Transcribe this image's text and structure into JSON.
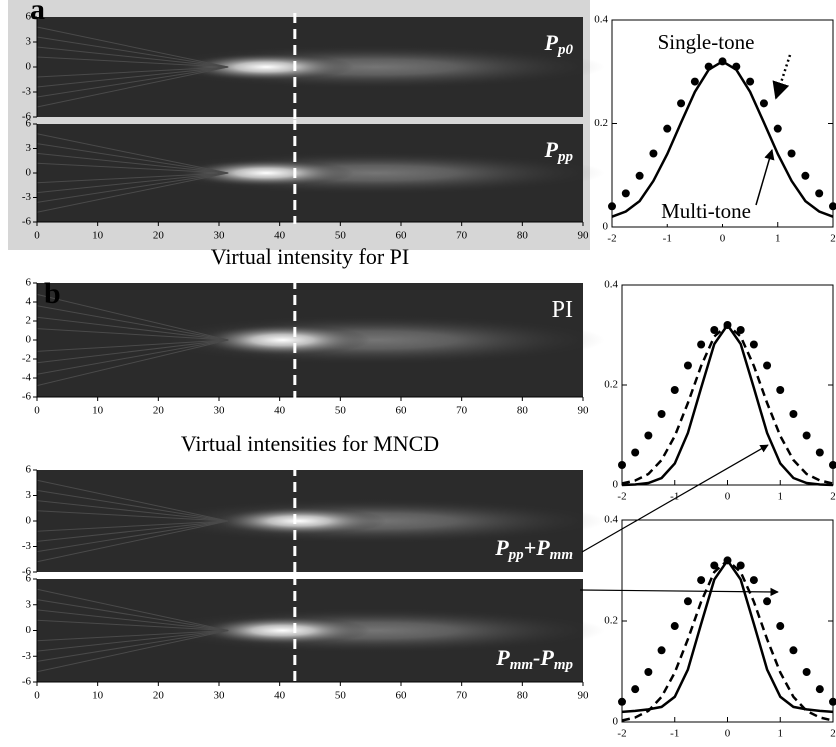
{
  "chart_data": [
    {
      "type": "heatmap",
      "panel_label": "a",
      "label": [
        {
          "text": "P"
        },
        {
          "text": "p0",
          "sub": true
        }
      ],
      "italic": true,
      "xlim": [
        0,
        90
      ],
      "ylim": [
        -6,
        6
      ],
      "yticks": [
        6,
        3,
        0,
        -3,
        -6
      ],
      "marker_x": 42.5
    },
    {
      "type": "heatmap",
      "label": [
        {
          "text": "P"
        },
        {
          "text": "pp",
          "sub": true
        }
      ],
      "italic": true,
      "xlim": [
        0,
        90
      ],
      "xticks": [
        0,
        10,
        20,
        30,
        40,
        50,
        60,
        70,
        80,
        90
      ],
      "ylim": [
        -6,
        6
      ],
      "yticks": [
        6,
        3,
        0,
        -3,
        -6
      ],
      "marker_x": 42.5
    },
    {
      "type": "heatmap",
      "panel_label": "b",
      "title": "Virtual intensity for PI",
      "label": [
        {
          "text": "PI"
        }
      ],
      "italic": false,
      "xlim": [
        0,
        90
      ],
      "xticks": [
        0,
        10,
        20,
        30,
        40,
        50,
        60,
        70,
        80,
        90
      ],
      "ylim": [
        -6,
        6
      ],
      "yticks": [
        6,
        4,
        2,
        0,
        -2,
        -4,
        -6
      ],
      "marker_x": 42.5
    },
    {
      "type": "heatmap",
      "title": "Virtual intensities for MNCD",
      "label": [
        {
          "text": "P"
        },
        {
          "text": "pp",
          "sub": true
        },
        {
          "text": "+"
        },
        {
          "text": "P"
        },
        {
          "text": "mm",
          "sub": true
        }
      ],
      "italic": true,
      "xlim": [
        0,
        90
      ],
      "ylim": [
        -6,
        6
      ],
      "yticks": [
        6,
        3,
        0,
        -3,
        -6
      ],
      "marker_x": 42.5
    },
    {
      "type": "heatmap",
      "label": [
        {
          "text": "P"
        },
        {
          "text": "mm",
          "sub": true
        },
        {
          "text": "-"
        },
        {
          "text": "P"
        },
        {
          "text": "mp",
          "sub": true
        }
      ],
      "italic": true,
      "xlim": [
        0,
        90
      ],
      "xticks": [
        0,
        10,
        20,
        30,
        40,
        50,
        60,
        70,
        80,
        90
      ],
      "ylim": [
        -6,
        6
      ],
      "yticks": [
        6,
        3,
        0,
        -3,
        -6
      ],
      "marker_x": 42.5
    },
    {
      "type": "line",
      "xlim": [
        -2,
        2
      ],
      "xticks": [
        -2,
        -1,
        0,
        1,
        2
      ],
      "ylim": [
        0,
        0.4
      ],
      "yticks": [
        0,
        0.2,
        0.4
      ],
      "x": [
        -2,
        -1.75,
        -1.5,
        -1.25,
        -1,
        -0.75,
        -0.5,
        -0.25,
        0,
        0.25,
        0.5,
        0.75,
        1,
        1.25,
        1.5,
        1.75,
        2
      ],
      "series": [
        {
          "name": "Single-tone",
          "style": "dots",
          "color": "#000000",
          "values": [
            0.04,
            0.065,
            0.099,
            0.142,
            0.19,
            0.239,
            0.281,
            0.31,
            0.32,
            0.31,
            0.281,
            0.239,
            0.19,
            0.142,
            0.099,
            0.065,
            0.04
          ]
        },
        {
          "name": "Multi-tone",
          "style": "solid",
          "color": "#000000",
          "values": [
            0.02,
            0.03,
            0.05,
            0.089,
            0.141,
            0.202,
            0.261,
            0.304,
            0.32,
            0.304,
            0.261,
            0.202,
            0.141,
            0.089,
            0.05,
            0.03,
            0.02
          ]
        }
      ]
    },
    {
      "type": "line",
      "xlim": [
        -2,
        2
      ],
      "xticks": [
        -2,
        -1,
        0,
        1,
        2
      ],
      "ylim": [
        0,
        0.4
      ],
      "yticks": [
        0,
        0.2,
        0.4
      ],
      "x": [
        -2,
        -1.75,
        -1.5,
        -1.25,
        -1,
        -0.75,
        -0.5,
        -0.25,
        0,
        0.25,
        0.5,
        0.75,
        1,
        1.25,
        1.5,
        1.75,
        2
      ],
      "series": [
        {
          "style": "dots",
          "color": "#000000",
          "values": [
            0.04,
            0.065,
            0.099,
            0.142,
            0.19,
            0.239,
            0.281,
            0.31,
            0.32,
            0.31,
            0.281,
            0.239,
            0.19,
            0.142,
            0.099,
            0.065,
            0.04
          ]
        },
        {
          "style": "dashed",
          "color": "#000000",
          "values": [
            0.003,
            0.009,
            0.022,
            0.05,
            0.098,
            0.164,
            0.238,
            0.297,
            0.32,
            0.297,
            0.238,
            0.164,
            0.098,
            0.05,
            0.022,
            0.009,
            0.003
          ]
        },
        {
          "style": "solid",
          "color": "#000000",
          "values": [
            0,
            0.001,
            0.004,
            0.014,
            0.043,
            0.104,
            0.194,
            0.282,
            0.32,
            0.282,
            0.194,
            0.104,
            0.043,
            0.014,
            0.004,
            0.001,
            0
          ]
        }
      ]
    },
    {
      "type": "line",
      "xlim": [
        -2,
        2
      ],
      "xticks": [
        -2,
        -1,
        0,
        1,
        2
      ],
      "ylim": [
        0,
        0.4
      ],
      "yticks": [
        0,
        0.2,
        0.4
      ],
      "x": [
        -2,
        -1.75,
        -1.5,
        -1.25,
        -1,
        -0.75,
        -0.5,
        -0.25,
        0,
        0.25,
        0.5,
        0.75,
        1,
        1.25,
        1.5,
        1.75,
        2
      ],
      "series": [
        {
          "style": "dots",
          "color": "#000000",
          "values": [
            0.04,
            0.065,
            0.099,
            0.142,
            0.19,
            0.239,
            0.281,
            0.31,
            0.32,
            0.31,
            0.281,
            0.239,
            0.19,
            0.142,
            0.099,
            0.065,
            0.04
          ]
        },
        {
          "style": "dashed",
          "color": "#000000",
          "values": [
            0.003,
            0.009,
            0.022,
            0.05,
            0.098,
            0.164,
            0.238,
            0.297,
            0.32,
            0.297,
            0.238,
            0.164,
            0.098,
            0.05,
            0.022,
            0.009,
            0.003
          ]
        },
        {
          "style": "solid",
          "color": "#000000",
          "values": [
            0.02,
            0.022,
            0.025,
            0.03,
            0.05,
            0.104,
            0.194,
            0.282,
            0.32,
            0.282,
            0.194,
            0.104,
            0.05,
            0.03,
            0.025,
            0.022,
            0.02
          ]
        }
      ]
    }
  ]
}
